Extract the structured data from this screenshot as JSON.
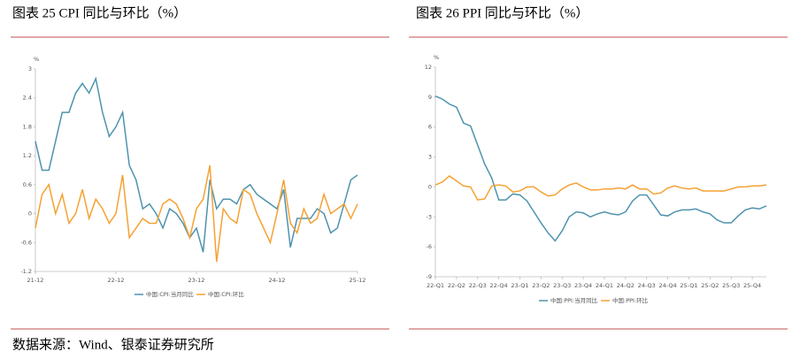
{
  "chart_data": [
    {
      "type": "line",
      "title": "图表 25 CPI 同比与环比（%）",
      "unit": "%",
      "categories": [
        "21-12",
        null,
        null,
        null,
        null,
        null,
        null,
        null,
        null,
        null,
        null,
        null,
        "22-12",
        null,
        null,
        null,
        null,
        null,
        null,
        null,
        null,
        null,
        null,
        null,
        "23-12",
        null,
        null,
        null,
        null,
        null,
        null,
        null,
        null,
        null,
        null,
        null,
        "24-12",
        null,
        null,
        null,
        null,
        null,
        null,
        null,
        null,
        null,
        null,
        null,
        "25-12"
      ],
      "series": [
        {
          "name": "中国:CPI:当月同比",
          "color": "#4e93ae",
          "values": [
            1.5,
            0.9,
            0.9,
            1.5,
            2.1,
            2.1,
            2.5,
            2.7,
            2.5,
            2.8,
            2.1,
            1.6,
            1.8,
            2.1,
            1.0,
            0.7,
            0.1,
            0.2,
            0.0,
            -0.3,
            0.1,
            0.0,
            -0.2,
            -0.5,
            -0.3,
            -0.8,
            0.7,
            0.1,
            0.3,
            0.3,
            0.2,
            0.5,
            0.6,
            0.4,
            0.3,
            0.2,
            0.1,
            0.5,
            -0.7,
            -0.1,
            -0.1,
            -0.1,
            0.1,
            0.0,
            -0.4,
            -0.3,
            0.2,
            0.7,
            0.8
          ]
        },
        {
          "name": "中国:CPI:环比",
          "color": "#f5a133",
          "values": [
            -0.3,
            0.4,
            0.6,
            0.0,
            0.4,
            -0.2,
            0.0,
            0.5,
            -0.1,
            0.3,
            0.1,
            -0.2,
            0.0,
            0.8,
            -0.5,
            -0.3,
            -0.1,
            -0.2,
            -0.2,
            0.2,
            0.3,
            0.2,
            -0.1,
            -0.5,
            0.1,
            0.3,
            1.0,
            -1.0,
            0.1,
            -0.1,
            -0.2,
            0.5,
            0.4,
            0.0,
            -0.3,
            -0.6,
            0.0,
            0.7,
            -0.2,
            -0.4,
            0.1,
            -0.2,
            -0.1,
            0.4,
            0.0,
            0.1,
            0.2,
            -0.1,
            0.2
          ]
        }
      ],
      "ylim": [
        -1.2,
        3
      ],
      "yticks": [
        -1.2,
        -0.6,
        0,
        0.6,
        1.2,
        1.8,
        2.4,
        3
      ],
      "grid": false,
      "legend": "bottom"
    },
    {
      "type": "line",
      "title": "图表 26 PPI 同比与环比（%）",
      "unit": "%",
      "categories": [
        "22-Q1",
        null,
        null,
        "22-Q2",
        null,
        null,
        "22-Q3",
        null,
        null,
        "22-Q4",
        null,
        null,
        "23-Q1",
        null,
        null,
        "23-Q2",
        null,
        null,
        "23-Q3",
        null,
        null,
        "23-Q4",
        null,
        null,
        "24-Q1",
        null,
        null,
        "24-Q2",
        null,
        null,
        "24-Q3",
        null,
        null,
        "24-Q4",
        null,
        null,
        "25-Q1",
        null,
        null,
        "25-Q2",
        null,
        null,
        "25-Q3",
        null,
        null,
        "25-Q4",
        null,
        null
      ],
      "series": [
        {
          "name": "中国:PPI:当月同比",
          "color": "#4e93ae",
          "values": [
            9.1,
            8.8,
            8.3,
            8.0,
            6.4,
            6.1,
            4.2,
            2.3,
            0.9,
            -1.3,
            -1.3,
            -0.7,
            -0.8,
            -1.4,
            -2.5,
            -3.6,
            -4.6,
            -5.4,
            -4.4,
            -3.0,
            -2.5,
            -2.6,
            -3.0,
            -2.7,
            -2.5,
            -2.7,
            -2.8,
            -2.5,
            -1.4,
            -0.8,
            -0.8,
            -1.8,
            -2.8,
            -2.9,
            -2.5,
            -2.3,
            -2.3,
            -2.2,
            -2.5,
            -2.7,
            -3.3,
            -3.6,
            -3.6,
            -2.9,
            -2.3,
            -2.1,
            -2.2,
            -1.9
          ]
        },
        {
          "name": "中国:PPI:环比",
          "color": "#f5a133",
          "values": [
            0.2,
            0.5,
            1.1,
            0.6,
            0.1,
            0.0,
            -1.3,
            -1.2,
            0.1,
            0.2,
            0.1,
            -0.5,
            -0.4,
            0.0,
            0.0,
            -0.5,
            -0.9,
            -0.8,
            -0.2,
            0.2,
            0.4,
            0.0,
            -0.3,
            -0.3,
            -0.2,
            -0.2,
            -0.1,
            -0.2,
            0.2,
            -0.2,
            -0.2,
            -0.7,
            -0.6,
            -0.1,
            0.1,
            -0.1,
            -0.2,
            -0.1,
            -0.4,
            -0.4,
            -0.4,
            -0.4,
            -0.2,
            0.0,
            0.0,
            0.1,
            0.1,
            0.2
          ]
        }
      ],
      "ylim": [
        -9,
        12
      ],
      "yticks": [
        -9,
        -6,
        -3,
        0,
        3,
        6,
        9,
        12
      ],
      "grid": false,
      "legend": "bottom"
    }
  ],
  "source": "数据来源：Wind、银泰证券研究所"
}
